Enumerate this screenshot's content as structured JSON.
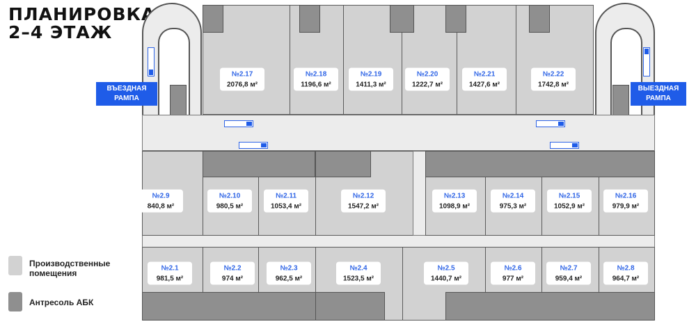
{
  "title": {
    "line1": "ПЛАНИРОВКА",
    "line2": "2–4 ЭТАЖ"
  },
  "ramps": {
    "entry": "ВЪЕЗДНАЯ РАМПА",
    "exit": "ВЫЕЗДНАЯ РАМПА"
  },
  "units": {
    "u217": {
      "n": "№2.17",
      "a": "2076,8 м²"
    },
    "u218": {
      "n": "№2.18",
      "a": "1196,6 м²"
    },
    "u219": {
      "n": "№2.19",
      "a": "1411,3 м²"
    },
    "u220": {
      "n": "№2.20",
      "a": "1222,7 м²"
    },
    "u221": {
      "n": "№2.21",
      "a": "1427,6 м²"
    },
    "u222": {
      "n": "№2.22",
      "a": "1742,8 м²"
    },
    "u29": {
      "n": "№2.9",
      "a": "840,8 м²"
    },
    "u210": {
      "n": "№2.10",
      "a": "980,5 м²"
    },
    "u211": {
      "n": "№2.11",
      "a": "1053,4 м²"
    },
    "u212": {
      "n": "№2.12",
      "a": "1547,2 м²"
    },
    "u213": {
      "n": "№2.13",
      "a": "1098,9 м²"
    },
    "u214": {
      "n": "№2.14",
      "a": "975,3 м²"
    },
    "u215": {
      "n": "№2.15",
      "a": "1052,9 м²"
    },
    "u216": {
      "n": "№2.16",
      "a": "979,9 м²"
    },
    "u21": {
      "n": "№2.1",
      "a": "981,5 м²"
    },
    "u22": {
      "n": "№2.2",
      "a": "974 м²"
    },
    "u23": {
      "n": "№2.3",
      "a": "962,5 м²"
    },
    "u24": {
      "n": "№2.4",
      "a": "1523,5 м²"
    },
    "u25": {
      "n": "№2.5",
      "a": "1440,7 м²"
    },
    "u26": {
      "n": "№2.6",
      "a": "977 м²"
    },
    "u27": {
      "n": "№2.7",
      "a": "959,4 м²"
    },
    "u28": {
      "n": "№2.8",
      "a": "964,7 м²"
    }
  },
  "legend": {
    "production": "Производственные помещения",
    "abk": "Антресоль АБК"
  },
  "colors": {
    "production": "#d2d2d2",
    "abk": "#8f8f8f",
    "accent": "#1f5ce8"
  }
}
